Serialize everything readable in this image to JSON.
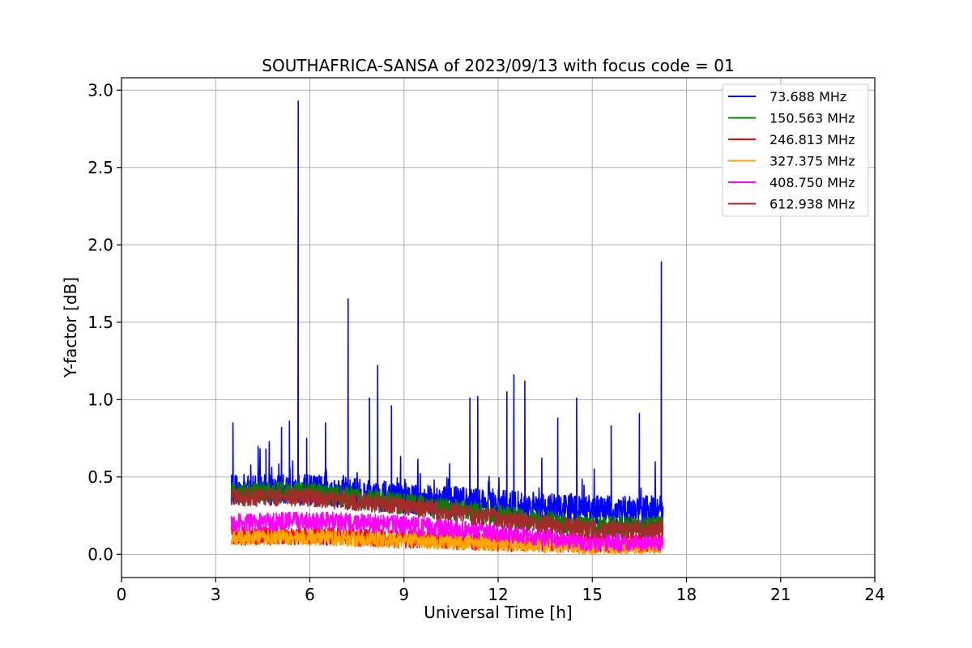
{
  "chart_data": {
    "type": "line",
    "title": "SOUTHAFRICA-SANSA of 2023/09/13 with focus code = 01",
    "xlabel": "Universal Time [h]",
    "ylabel": "Y-factor [dB]",
    "xlim": [
      0,
      24
    ],
    "ylim": [
      -0.15,
      3.08
    ],
    "xticks": [
      0,
      3,
      6,
      9,
      12,
      15,
      18,
      21,
      24
    ],
    "xtick_labels": [
      "0",
      "3",
      "6",
      "9",
      "12",
      "15",
      "18",
      "21",
      "24"
    ],
    "yticks": [
      0.0,
      0.5,
      1.0,
      1.5,
      2.0,
      2.5,
      3.0
    ],
    "ytick_labels": [
      "0.0",
      "0.5",
      "1.0",
      "1.5",
      "2.0",
      "2.5",
      "3.0"
    ],
    "grid": true,
    "legend_position": "top-right",
    "x_range_of_data": [
      3.5,
      17.25
    ],
    "series": [
      {
        "name": "  73.688 MHz",
        "color": "#0000ff",
        "baseline": [
          [
            3.5,
            0.42
          ],
          [
            6.0,
            0.42
          ],
          [
            9.0,
            0.36
          ],
          [
            12.0,
            0.32
          ],
          [
            15.0,
            0.28
          ],
          [
            17.25,
            0.28
          ]
        ],
        "noise": 0.1,
        "spikes": [
          [
            3.55,
            0.85
          ],
          [
            4.6,
            0.68
          ],
          [
            5.1,
            0.82
          ],
          [
            5.35,
            0.86
          ],
          [
            5.63,
            2.93
          ],
          [
            5.9,
            0.75
          ],
          [
            6.5,
            0.85
          ],
          [
            7.22,
            1.65
          ],
          [
            7.9,
            1.01
          ],
          [
            8.16,
            1.22
          ],
          [
            8.6,
            0.96
          ],
          [
            11.1,
            1.01
          ],
          [
            11.35,
            1.02
          ],
          [
            12.28,
            1.05
          ],
          [
            12.5,
            1.16
          ],
          [
            12.85,
            1.12
          ],
          [
            13.9,
            0.88
          ],
          [
            14.5,
            1.01
          ],
          [
            15.6,
            0.83
          ],
          [
            16.5,
            0.91
          ],
          [
            17.2,
            1.89
          ]
        ]
      },
      {
        "name": "150.563 MHz",
        "color": "#008000",
        "baseline": [
          [
            3.5,
            0.4
          ],
          [
            6.0,
            0.4
          ],
          [
            9.0,
            0.33
          ],
          [
            12.0,
            0.25
          ],
          [
            15.0,
            0.18
          ],
          [
            17.25,
            0.18
          ]
        ],
        "noise": 0.07,
        "spikes": []
      },
      {
        "name": "246.813 MHz",
        "color": "#ff0000",
        "baseline": [
          [
            3.5,
            0.12
          ],
          [
            6.0,
            0.12
          ],
          [
            9.0,
            0.1
          ],
          [
            12.0,
            0.08
          ],
          [
            15.0,
            0.07
          ],
          [
            17.25,
            0.07
          ]
        ],
        "noise": 0.06,
        "spikes": []
      },
      {
        "name": "327.375 MHz",
        "color": "#ffa500",
        "baseline": [
          [
            3.5,
            0.11
          ],
          [
            6.0,
            0.11
          ],
          [
            9.0,
            0.09
          ],
          [
            12.0,
            0.07
          ],
          [
            15.0,
            0.05
          ],
          [
            17.25,
            0.05
          ]
        ],
        "noise": 0.05,
        "spikes": []
      },
      {
        "name": "408.750 MHz",
        "color": "#ff00ff",
        "baseline": [
          [
            3.5,
            0.2
          ],
          [
            6.0,
            0.22
          ],
          [
            9.0,
            0.19
          ],
          [
            12.0,
            0.14
          ],
          [
            15.0,
            0.08
          ],
          [
            17.25,
            0.08
          ]
        ],
        "noise": 0.06,
        "spikes": []
      },
      {
        "name": "612.938 MHz",
        "color": "#a52a2a",
        "baseline": [
          [
            3.5,
            0.37
          ],
          [
            6.0,
            0.37
          ],
          [
            9.0,
            0.31
          ],
          [
            12.0,
            0.23
          ],
          [
            15.0,
            0.16
          ],
          [
            17.25,
            0.17
          ]
        ],
        "noise": 0.06,
        "spikes": []
      }
    ]
  }
}
